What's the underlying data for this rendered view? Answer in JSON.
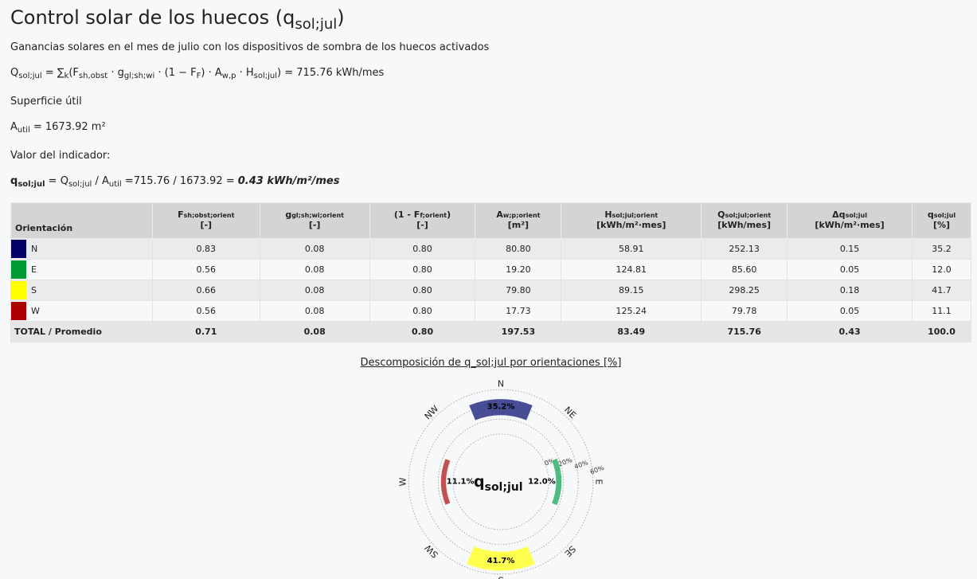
{
  "header": {
    "title_main": "Control solar de los huecos (q",
    "title_sub": "sol;jul",
    "title_end": ")",
    "subtitle": "Ganancias solares en el mes de julio con los dispositivos de sombra de los huecos activados"
  },
  "formula": {
    "q": "Q",
    "q_sub": "sol;jul",
    "sum": " = ∑",
    "k_sub": "k",
    "f": "(F",
    "f_sub": "sh,obst",
    "g": " · g",
    "g_sub": "gl;sh;wi",
    "ff": " · (1 − F",
    "ff_sub": "F",
    "a": ") · A",
    "a_sub": "w,p",
    "h": " · H",
    "h_sub": "sol;jul",
    "result": ") = 715.76 kWh/mes"
  },
  "area": {
    "label": "Superficie útil",
    "a": "A",
    "a_sub": "util",
    "value": " = 1673.92 m²"
  },
  "indicator": {
    "label": "Valor del indicador:",
    "q": "q",
    "q_sub": "sol;jul",
    "eq1": " = Q",
    "eq1_sub": "sol;jul",
    "eq2": " / A",
    "eq2_sub": "util",
    "eq3": " =715.76 / 1673.92 = ",
    "result": "0.43 kWh/m²/mes"
  },
  "table": {
    "headers": [
      {
        "main": "Orientación"
      },
      {
        "main": "F",
        "sub": "sh;obst;orient",
        "unit": "[-]"
      },
      {
        "main": "g",
        "sub": "gl;sh;wi;orient",
        "unit": "[-]"
      },
      {
        "main": "(1 - F",
        "sub": "f;orient",
        "main2": ")",
        "unit": "[-]"
      },
      {
        "main": "A",
        "sub": "w;p;orient",
        "unit": "[m²]"
      },
      {
        "main": "H",
        "sub": "sol;jul;orient",
        "unit": "[kWh/m²·mes]"
      },
      {
        "main": "Q",
        "sub": "sol;jul;orient",
        "unit": "[kWh/mes]"
      },
      {
        "main": "Δq",
        "sub": "sol;jul",
        "unit": "[kWh/m²·mes]"
      },
      {
        "main": "q",
        "sub": "sol;jul",
        "unit": "[%]"
      }
    ],
    "rows": [
      {
        "color": "#000066",
        "name": "N",
        "f": "0.83",
        "g": "0.08",
        "ff": "0.80",
        "a": "80.80",
        "h": "58.91",
        "q": "252.13",
        "dq": "0.15",
        "pct": "35.2"
      },
      {
        "color": "#009933",
        "name": "E",
        "f": "0.56",
        "g": "0.08",
        "ff": "0.80",
        "a": "19.20",
        "h": "124.81",
        "q": "85.60",
        "dq": "0.05",
        "pct": "12.0"
      },
      {
        "color": "#ffff00",
        "name": "S",
        "f": "0.66",
        "g": "0.08",
        "ff": "0.80",
        "a": "79.80",
        "h": "89.15",
        "q": "298.25",
        "dq": "0.18",
        "pct": "41.7"
      },
      {
        "color": "#aa0000",
        "name": "W",
        "f": "0.56",
        "g": "0.08",
        "ff": "0.80",
        "a": "17.73",
        "h": "125.24",
        "q": "79.78",
        "dq": "0.05",
        "pct": "11.1"
      }
    ],
    "total": {
      "name": "TOTAL / Promedio",
      "f": "0.71",
      "g": "0.08",
      "ff": "0.80",
      "a": "197.53",
      "h": "83.49",
      "q": "715.76",
      "dq": "0.43",
      "pct": "100.0"
    }
  },
  "chart_title": "Descomposición de q_sol;jul por orientaciones [%]",
  "chart_data": {
    "type": "polar-bar",
    "title": "Descomposición de q_sol;jul por orientaciones [%]",
    "center_label": "q",
    "center_label_sub": "sol;jul",
    "compass_labels": [
      "N",
      "NE",
      "E",
      "SE",
      "S",
      "SW",
      "W",
      "NW"
    ],
    "radial_ticks": [
      "0%",
      "20%",
      "40%",
      "60%"
    ],
    "series": [
      {
        "name": "N",
        "value": 35.2,
        "label": "35.2%",
        "color": "#3d4590"
      },
      {
        "name": "E",
        "value": 12.0,
        "label": "12.0%",
        "color": "#44b87a"
      },
      {
        "name": "S",
        "value": 41.7,
        "label": "41.7%",
        "color": "#ffff44"
      },
      {
        "name": "W",
        "value": 11.1,
        "label": "11.1%",
        "color": "#c04848"
      }
    ]
  }
}
